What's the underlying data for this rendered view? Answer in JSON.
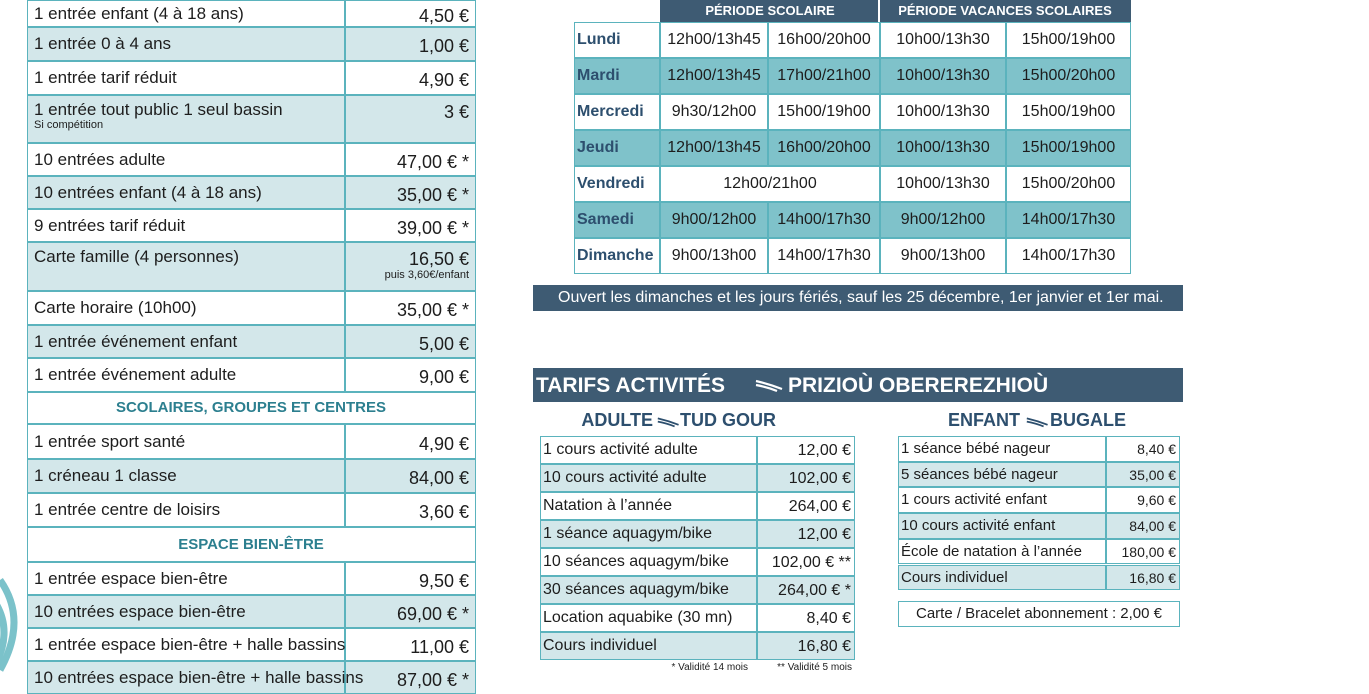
{
  "tarifs": {
    "rows": [
      {
        "label": "1 entrée enfant (4 à 18 ans)",
        "price": "4,50 €"
      },
      {
        "label": "1 entrée 0 à 4 ans",
        "price": "1,00 €"
      },
      {
        "label": "1 entrée tarif réduit",
        "price": "4,90 €"
      },
      {
        "label": "1 entrée tout public 1 seul bassin",
        "note": "Si compétition",
        "price": "3 €"
      },
      {
        "label": "10 entrées adulte",
        "price": "47,00 € *"
      },
      {
        "label": "10 entrées enfant (4 à 18 ans)",
        "price": "35,00 € *"
      },
      {
        "label": "9 entrées tarif réduit",
        "price": "39,00 € *"
      },
      {
        "label": "Carte famille (4 personnes)",
        "price": "16,50 €",
        "price_note": "puis 3,60€/enfant"
      },
      {
        "label": "Carte horaire (10h00)",
        "price": "35,00 € *"
      },
      {
        "label": "1 entrée événement enfant",
        "price": "5,00 €"
      },
      {
        "label": "1 entrée événement adulte",
        "price": "9,00 €"
      },
      {
        "section": "SCOLAIRES, GROUPES ET CENTRES"
      },
      {
        "label": "1 entrée sport santé",
        "price": "4,90 €"
      },
      {
        "label": "1 créneau 1 classe",
        "price": "84,00 €"
      },
      {
        "label": "1 entrée centre de loisirs",
        "price": "3,60 €"
      },
      {
        "section": "ESPACE BIEN-ÊTRE"
      },
      {
        "label": "1 entrée espace bien-être",
        "price": "9,50 €"
      },
      {
        "label": "10 entrées espace bien-être",
        "price": "69,00 € *"
      },
      {
        "label": "1 entrée espace bien-être + halle bassins",
        "price": "11,00 €"
      },
      {
        "label": "10 entrées espace bien-être + halle bassins",
        "price": "87,00 € *"
      }
    ]
  },
  "schedule": {
    "headers": [
      "PÉRIODE SCOLAIRE",
      "PÉRIODE VACANCES SCOLAIRES"
    ],
    "rows": [
      {
        "day": "Lundi",
        "slots": [
          "12h00/13h45",
          "16h00/20h00",
          "10h00/13h30",
          "15h00/19h00"
        ]
      },
      {
        "day": "Mardi",
        "slots": [
          "12h00/13h45",
          "17h00/21h00",
          "10h00/13h30",
          "15h00/20h00"
        ]
      },
      {
        "day": "Mercredi",
        "slots": [
          "9h30/12h00",
          "15h00/19h00",
          "10h00/13h30",
          "15h00/19h00"
        ]
      },
      {
        "day": "Jeudi",
        "slots": [
          "12h00/13h45",
          "16h00/20h00",
          "10h00/13h30",
          "15h00/19h00"
        ]
      },
      {
        "day": "Vendredi",
        "slots": [
          "12h00/21h00",
          "10h00/13h30",
          "15h00/20h00"
        ]
      },
      {
        "day": "Samedi",
        "slots": [
          "9h00/12h00",
          "14h00/17h30",
          "9h00/12h00",
          "14h00/17h30"
        ]
      },
      {
        "day": "Dimanche",
        "slots": [
          "9h00/13h00",
          "14h00/17h30",
          "9h00/13h00",
          "14h00/17h30"
        ]
      }
    ],
    "notice": "Ouvert les dimanches et les jours fériés, sauf les 25 décembre, 1er janvier et 1er mai."
  },
  "activities": {
    "title_fr": "TARIFS ACTIVITÉS",
    "title_br": "PRIZIOÙ OBEREREZHIOÙ",
    "adult": {
      "title_fr": "ADULTE",
      "title_br": "TUD GOUR",
      "rows": [
        {
          "label": "1 cours activité adulte",
          "price": "12,00 €"
        },
        {
          "label": "10 cours activité adulte",
          "price": "102,00 €"
        },
        {
          "label": "Natation à l’année",
          "price": "264,00 €"
        },
        {
          "label": "1 séance aquagym/bike",
          "price": "12,00 €"
        },
        {
          "label": "10 séances aquagym/bike",
          "price": "102,00 € **"
        },
        {
          "label": "30 séances aquagym/bike",
          "price": "264,00 € *"
        },
        {
          "label": "Location aquabike (30 mn)",
          "price": "8,40 €"
        },
        {
          "label": "Cours individuel",
          "price": "16,80 €"
        }
      ],
      "footnotes": [
        "* Validité 14 mois",
        "** Validité 5 mois"
      ]
    },
    "child": {
      "title_fr": "ENFANT",
      "title_br": "BUGALE",
      "rows": [
        {
          "label": "1 séance bébé nageur",
          "price": "8,40 €"
        },
        {
          "label": "5 séances bébé nageur",
          "price": "35,00 €"
        },
        {
          "label": "1 cours activité enfant",
          "price": "9,60 €"
        },
        {
          "label": "10 cours activité enfant",
          "price": "84,00 €"
        },
        {
          "label": "École de natation à l’année",
          "price": "180,00 €"
        },
        {
          "label": "Cours individuel",
          "price": "16,80 €"
        }
      ]
    },
    "card": "Carte / Bracelet abonnement : 2,00 €"
  }
}
